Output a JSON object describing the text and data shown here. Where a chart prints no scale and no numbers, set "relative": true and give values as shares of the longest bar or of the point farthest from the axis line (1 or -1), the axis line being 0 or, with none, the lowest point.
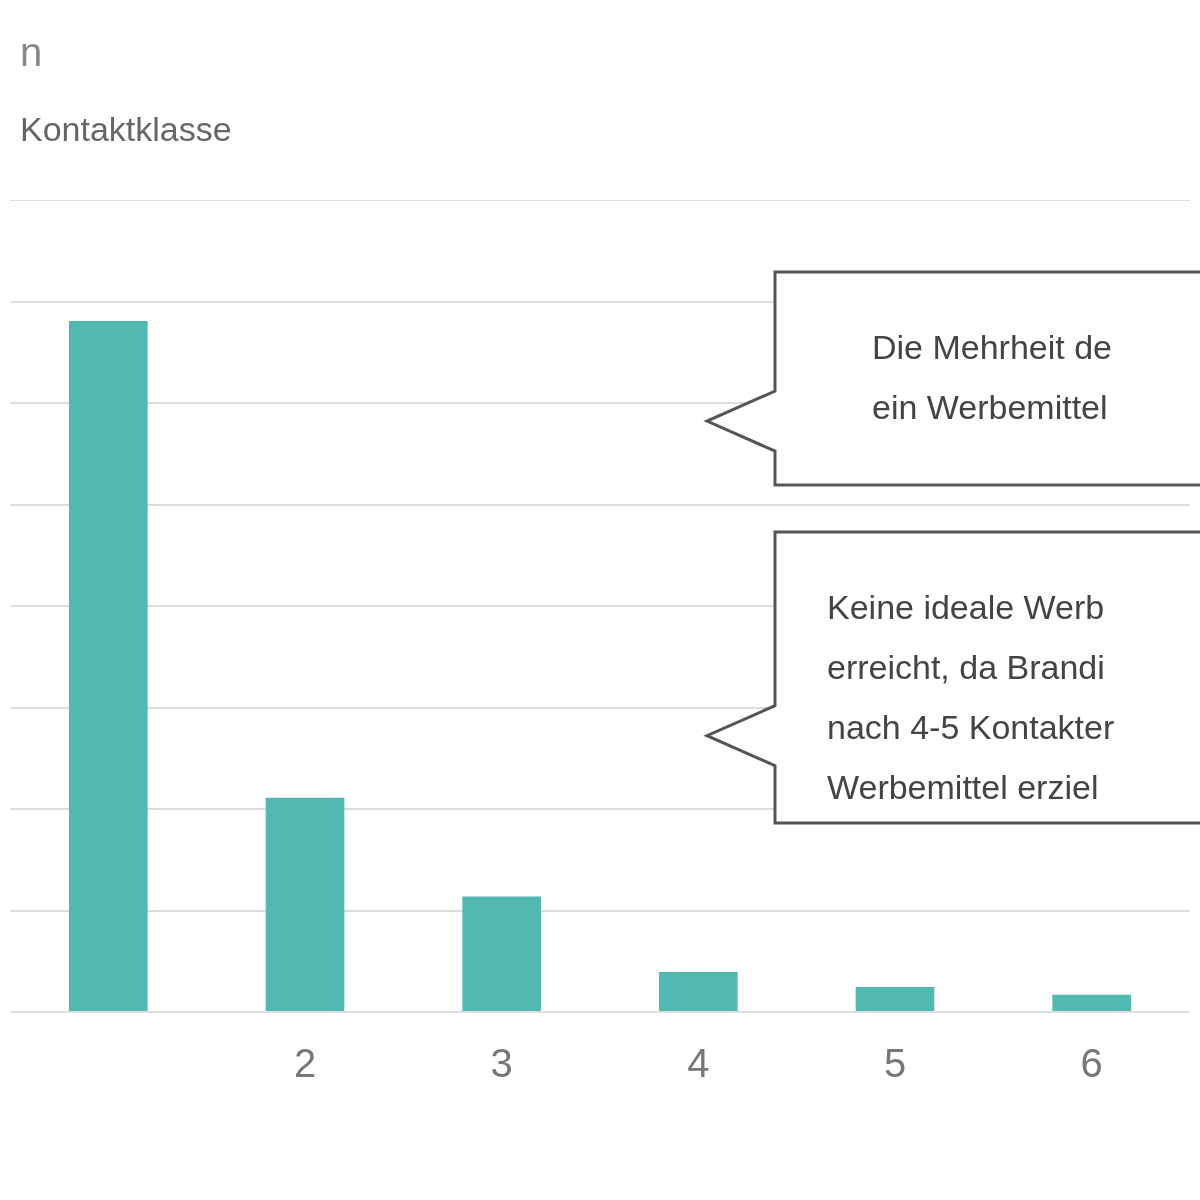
{
  "chart_data": {
    "type": "bar",
    "title": "n",
    "subtitle": "Kontaktklasse",
    "categories": [
      null,
      "2",
      "3",
      "4",
      "5",
      "6"
    ],
    "values": [
      1,
      0.31,
      0.167,
      0.058,
      0.036,
      0.025
    ],
    "color": "#52b9b0",
    "relative": true,
    "grid": "y",
    "annotations": [
      "Die Mehrheit de\nein Werbemittel",
      "Keine ideale Werb\nerreicht, da Brandi\nnach 4-5 Kontakter\nWerbemittel erziel"
    ]
  }
}
